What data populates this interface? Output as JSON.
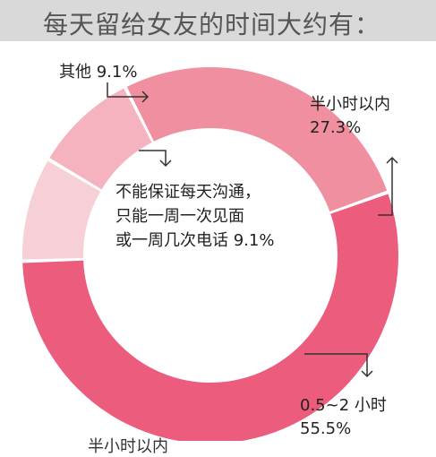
{
  "title": "每天留给女友的时间大约有：",
  "chart_data": {
    "type": "pie",
    "donut": true,
    "title": "每天留给女友的时间大约有：",
    "slices": [
      {
        "label_lines": [
          "半小时以内",
          "27.3%"
        ],
        "value": 27.3,
        "color": "#ef8f9f"
      },
      {
        "label_lines": [
          "0.5~2 小时",
          "55.5%"
        ],
        "value": 55.5,
        "color": "#ec5c7c"
      },
      {
        "label_lines": [
          "不能保证每天沟通，",
          "只能一周一次见面",
          "或一周几次电话 9.1%"
        ],
        "value": 9.1,
        "color": "#f7d0d7"
      },
      {
        "label_lines": [
          "其他 9.1%"
        ],
        "value": 9.1,
        "color": "#f4b3bf"
      }
    ],
    "bottom_cut_text": "半小时以内"
  }
}
